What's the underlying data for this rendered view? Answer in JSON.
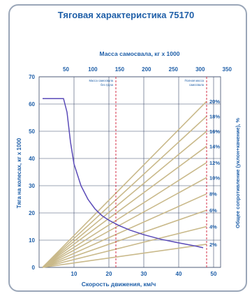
{
  "chart_data": {
    "type": "line",
    "title": "Тяговая характеристика 75170",
    "xlabel": "Скорость движения, км/ч",
    "ylabel": "Тяга на колесах, кг x 1000",
    "x2label": "Масса самосвала, кг x 1000",
    "y2label": "Общее сопротивление (уклон+качение), %",
    "xlim": [
      0,
      52
    ],
    "ylim": [
      0,
      70
    ],
    "x_ticks": [
      10,
      20,
      30,
      40,
      50
    ],
    "y_ticks": [
      0,
      10,
      20,
      30,
      40,
      50,
      60,
      70
    ],
    "x2_ticks": [
      50,
      100,
      150,
      200,
      250,
      300,
      350
    ],
    "x2_per_x": 6.5,
    "grid": true,
    "traction_curve": {
      "x": [
        1,
        5,
        7,
        8,
        9,
        10,
        12,
        14,
        16,
        18,
        20,
        23,
        26,
        30,
        35,
        40,
        45,
        47
      ],
      "y": [
        62,
        62,
        62,
        57,
        46,
        38,
        30,
        25,
        21.5,
        19,
        17.3,
        15.3,
        13.7,
        12,
        10.3,
        9,
        7.8,
        7.2
      ]
    },
    "vlines": [
      {
        "x": 22,
        "label": "Масса самосвала без груза"
      },
      {
        "x": 48,
        "label": "Полная масса самосвала"
      }
    ],
    "resistance_lines": {
      "labels": [
        "20%",
        "18%",
        "16%",
        "14%",
        "12%",
        "10%",
        "8%",
        "6%",
        "4%",
        "2%"
      ],
      "end_values": [
        61,
        55.5,
        50,
        44.5,
        38.5,
        33,
        27,
        21,
        15,
        8.5
      ],
      "end_x": 48
    }
  },
  "colors": {
    "title": "#1f5fa8",
    "axis": "#1f5fa8",
    "curve": "#5a4ab8",
    "resistance": "#c9b98a",
    "vline": "#d6304a",
    "grid": "#3d4a6a"
  }
}
